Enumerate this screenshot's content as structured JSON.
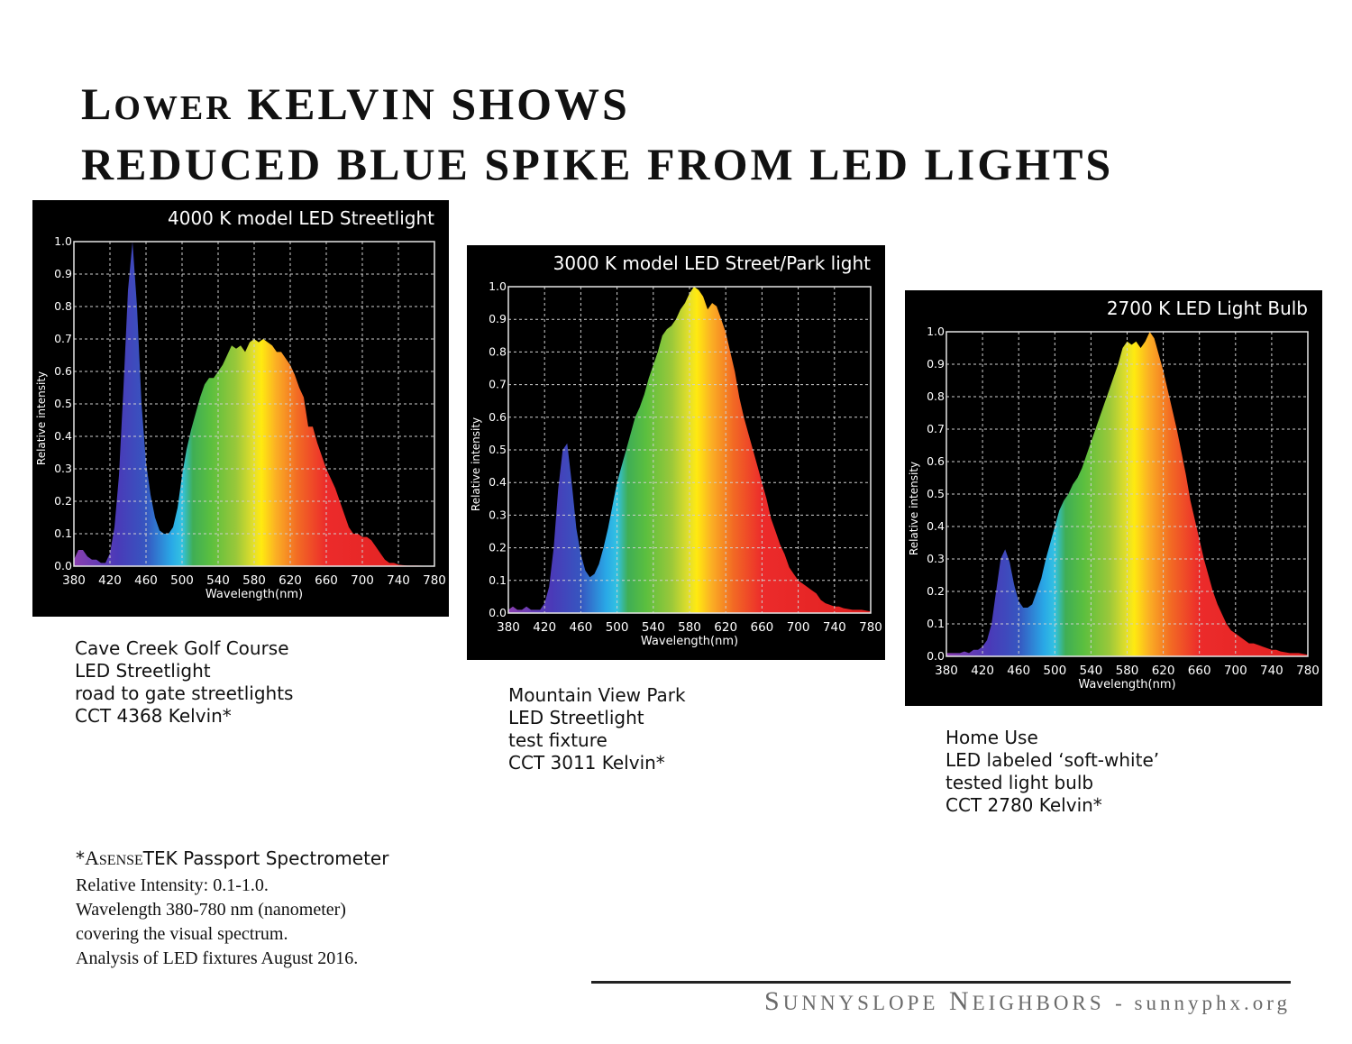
{
  "title": {
    "line1_first_initial": "L",
    "line1_first_rest": "OWER",
    "line1_rest": "KELVIN SHOWS",
    "line2": "REDUCED BLUE SPIKE FROM LED LIGHTS"
  },
  "chart_data": [
    {
      "type": "area",
      "title": "4000 K model LED Streetlight",
      "xlabel": "Wavelength(nm)",
      "ylabel": "Relative intensity",
      "xlim": [
        380,
        780
      ],
      "ylim": [
        0,
        1.0
      ],
      "x_ticks": [
        380,
        420,
        460,
        500,
        540,
        580,
        620,
        660,
        700,
        740,
        780
      ],
      "y_ticks": [
        "0.0",
        "0.1",
        "0.2",
        "0.3",
        "0.4",
        "0.5",
        "0.6",
        "0.7",
        "0.8",
        "0.9",
        "1.0"
      ],
      "grid": true,
      "fill": "visible-spectrum gradient",
      "x": [
        380,
        385,
        390,
        395,
        400,
        405,
        410,
        415,
        420,
        425,
        430,
        435,
        440,
        445,
        450,
        455,
        460,
        465,
        470,
        475,
        480,
        485,
        490,
        495,
        500,
        505,
        510,
        515,
        520,
        525,
        530,
        535,
        540,
        545,
        550,
        555,
        560,
        565,
        570,
        575,
        580,
        585,
        590,
        595,
        600,
        605,
        610,
        615,
        620,
        625,
        630,
        635,
        640,
        645,
        650,
        655,
        660,
        665,
        670,
        675,
        680,
        685,
        690,
        695,
        700,
        705,
        710,
        715,
        720,
        725,
        730,
        735,
        740,
        745,
        750,
        760,
        770,
        780
      ],
      "y": [
        0.02,
        0.05,
        0.05,
        0.03,
        0.02,
        0.02,
        0.01,
        0.01,
        0.04,
        0.12,
        0.28,
        0.55,
        0.85,
        1.0,
        0.8,
        0.5,
        0.32,
        0.22,
        0.15,
        0.11,
        0.1,
        0.1,
        0.12,
        0.18,
        0.28,
        0.36,
        0.42,
        0.47,
        0.52,
        0.56,
        0.58,
        0.58,
        0.6,
        0.62,
        0.65,
        0.68,
        0.67,
        0.68,
        0.66,
        0.69,
        0.7,
        0.69,
        0.7,
        0.69,
        0.68,
        0.66,
        0.66,
        0.64,
        0.62,
        0.59,
        0.55,
        0.52,
        0.43,
        0.43,
        0.38,
        0.34,
        0.3,
        0.27,
        0.24,
        0.2,
        0.16,
        0.12,
        0.1,
        0.1,
        0.09,
        0.09,
        0.08,
        0.06,
        0.04,
        0.02,
        0.01,
        0.01,
        0.005,
        0.003,
        0.002,
        0.002,
        0.001,
        0.0
      ]
    },
    {
      "type": "area",
      "title": "3000 K model LED Street/Park light",
      "xlabel": "Wavelength(nm)",
      "ylabel": "Relative intensity",
      "xlim": [
        380,
        780
      ],
      "ylim": [
        0,
        1.0
      ],
      "x_ticks": [
        380,
        420,
        460,
        500,
        540,
        580,
        620,
        660,
        700,
        740,
        780
      ],
      "y_ticks": [
        "0.0",
        "0.1",
        "0.2",
        "0.3",
        "0.4",
        "0.5",
        "0.6",
        "0.7",
        "0.8",
        "0.9",
        "1.0"
      ],
      "grid": true,
      "fill": "visible-spectrum gradient",
      "x": [
        380,
        385,
        390,
        395,
        400,
        405,
        410,
        415,
        420,
        425,
        430,
        435,
        440,
        445,
        450,
        455,
        460,
        465,
        470,
        475,
        480,
        485,
        490,
        495,
        500,
        505,
        510,
        515,
        520,
        525,
        530,
        535,
        540,
        545,
        550,
        555,
        560,
        565,
        570,
        575,
        580,
        585,
        590,
        595,
        600,
        605,
        610,
        615,
        620,
        625,
        630,
        635,
        640,
        645,
        650,
        655,
        660,
        665,
        670,
        675,
        680,
        685,
        690,
        695,
        700,
        705,
        710,
        715,
        720,
        725,
        730,
        735,
        740,
        745,
        750,
        760,
        770,
        780
      ],
      "y": [
        0.01,
        0.02,
        0.01,
        0.01,
        0.02,
        0.01,
        0.01,
        0.01,
        0.03,
        0.08,
        0.2,
        0.38,
        0.5,
        0.52,
        0.4,
        0.26,
        0.18,
        0.13,
        0.11,
        0.12,
        0.15,
        0.2,
        0.26,
        0.33,
        0.4,
        0.45,
        0.5,
        0.55,
        0.6,
        0.63,
        0.67,
        0.72,
        0.76,
        0.8,
        0.85,
        0.87,
        0.88,
        0.9,
        0.93,
        0.95,
        0.98,
        1.0,
        0.99,
        0.97,
        0.93,
        0.95,
        0.94,
        0.9,
        0.86,
        0.8,
        0.74,
        0.66,
        0.6,
        0.55,
        0.5,
        0.45,
        0.4,
        0.35,
        0.29,
        0.25,
        0.21,
        0.18,
        0.14,
        0.12,
        0.1,
        0.09,
        0.08,
        0.07,
        0.06,
        0.04,
        0.03,
        0.025,
        0.02,
        0.02,
        0.015,
        0.01,
        0.01,
        0.005
      ]
    },
    {
      "type": "area",
      "title": "2700 K LED Light Bulb",
      "xlabel": "Wavelength(nm)",
      "ylabel": "Relative intensity",
      "xlim": [
        380,
        780
      ],
      "ylim": [
        0,
        1.0
      ],
      "x_ticks": [
        380,
        420,
        460,
        500,
        540,
        580,
        620,
        660,
        700,
        740,
        780
      ],
      "y_ticks": [
        "0.0",
        "0.1",
        "0.2",
        "0.3",
        "0.4",
        "0.5",
        "0.6",
        "0.7",
        "0.8",
        "0.9",
        "1.0"
      ],
      "grid": true,
      "fill": "visible-spectrum gradient",
      "x": [
        380,
        385,
        390,
        395,
        400,
        405,
        410,
        415,
        420,
        425,
        430,
        435,
        440,
        445,
        450,
        455,
        460,
        465,
        470,
        475,
        480,
        485,
        490,
        495,
        500,
        505,
        510,
        515,
        520,
        525,
        530,
        535,
        540,
        545,
        550,
        555,
        560,
        565,
        570,
        575,
        580,
        585,
        590,
        595,
        600,
        605,
        610,
        615,
        620,
        625,
        630,
        635,
        640,
        645,
        650,
        655,
        660,
        665,
        670,
        675,
        680,
        685,
        690,
        695,
        700,
        705,
        710,
        715,
        720,
        725,
        730,
        735,
        740,
        745,
        750,
        760,
        770,
        780
      ],
      "y": [
        0.01,
        0.01,
        0.01,
        0.01,
        0.015,
        0.01,
        0.02,
        0.02,
        0.03,
        0.05,
        0.1,
        0.2,
        0.3,
        0.33,
        0.29,
        0.22,
        0.17,
        0.15,
        0.15,
        0.16,
        0.2,
        0.24,
        0.3,
        0.35,
        0.4,
        0.45,
        0.48,
        0.5,
        0.53,
        0.55,
        0.58,
        0.62,
        0.66,
        0.7,
        0.74,
        0.78,
        0.82,
        0.86,
        0.9,
        0.95,
        0.97,
        0.96,
        0.97,
        0.95,
        0.97,
        1.0,
        0.98,
        0.93,
        0.88,
        0.82,
        0.76,
        0.7,
        0.63,
        0.56,
        0.48,
        0.42,
        0.36,
        0.3,
        0.25,
        0.2,
        0.16,
        0.13,
        0.1,
        0.08,
        0.07,
        0.06,
        0.05,
        0.04,
        0.04,
        0.035,
        0.03,
        0.025,
        0.02,
        0.02,
        0.015,
        0.01,
        0.01,
        0.005
      ]
    }
  ],
  "captions": [
    [
      "Cave Creek Golf Course",
      "LED Streetlight",
      "road to gate streetlights",
      "CCT 4368 Kelvin*"
    ],
    [
      "Mountain View Park",
      "LED Streetlight",
      "test fixture",
      "CCT 3011 Kelvin*"
    ],
    [
      "Home Use",
      "LED labeled ‘soft-white’",
      "tested light bulb",
      "CCT 2780 Kelvin*"
    ]
  ],
  "note": {
    "star": "*",
    "brand_initial": "A",
    "brand_small": "SENSE",
    "brand_tek": "TEK",
    "product": "Passport Spectrometer",
    "lines": [
      "Relative Intensity: 0.1-1.0.",
      "Wavelength 380-780 nm (nanometer)",
      "covering the visual spectrum.",
      "Analysis of  LED fixtures August 2016."
    ]
  },
  "footer": {
    "w1_initial": "S",
    "w1_rest": "UNNYSLOPE",
    "w2_initial": "N",
    "w2_rest": "EIGHBORS",
    "tail": "- sunnyphx.org"
  },
  "colors": {
    "panel_bg": "#000000",
    "grid": "#cfcfcf",
    "footer_text": "#6a6a6a",
    "spectrum": [
      "#8a3fb0",
      "#4a3ab8",
      "#3656c0",
      "#29a8e6",
      "#33c2e2",
      "#3fae55",
      "#5bbf3f",
      "#9ac83a",
      "#e6e02a",
      "#ffea10",
      "#fbb024",
      "#f26b24",
      "#ec2b2b",
      "#e02020"
    ]
  }
}
